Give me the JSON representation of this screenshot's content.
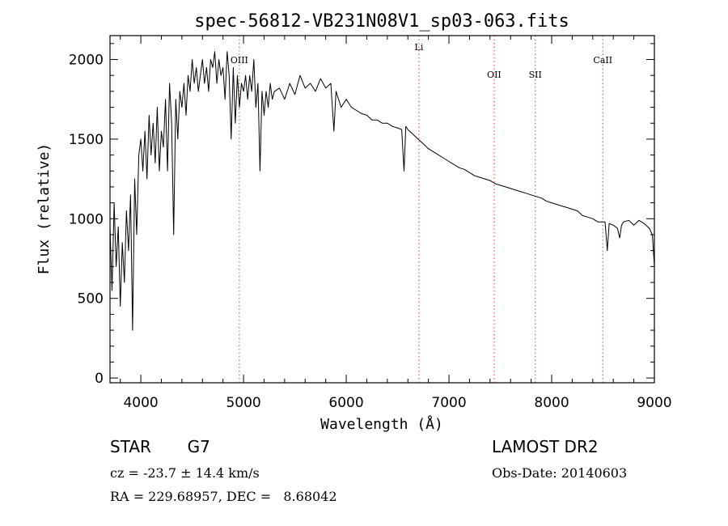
{
  "chart_data": {
    "type": "line",
    "title": "spec-56812-VB231N08V1_sp03-063.fits",
    "xlabel": "Wavelength (Å)",
    "ylabel": "Flux (relative)",
    "xlim": [
      3700,
      9000
    ],
    "ylim": [
      -30,
      2150
    ],
    "x_ticks": [
      4000,
      5000,
      6000,
      7000,
      8000,
      9000
    ],
    "y_ticks": [
      0,
      500,
      1000,
      1500,
      2000
    ],
    "grid": false,
    "line_color": "#000000",
    "marker_color": "#e06060",
    "lines": [
      {
        "label": "OIII",
        "wavelength": 4959
      },
      {
        "label": "Li",
        "wavelength": 6708
      },
      {
        "label": "OII",
        "wavelength": 7440
      },
      {
        "label": "SII",
        "wavelength": 7840
      },
      {
        "label": "CaII",
        "wavelength": 8498
      }
    ],
    "series": [
      {
        "x": [
          3700,
          3720,
          3740,
          3760,
          3780,
          3800,
          3820,
          3840,
          3860,
          3880,
          3900,
          3920,
          3940,
          3960,
          3980,
          4000,
          4020,
          4040,
          4060,
          4080,
          4100,
          4120,
          4140,
          4160,
          4180,
          4200,
          4220,
          4240,
          4260,
          4280,
          4300,
          4320,
          4340,
          4360,
          4380,
          4400,
          4420,
          4440,
          4460,
          4480,
          4500,
          4520,
          4540,
          4560,
          4580,
          4600,
          4620,
          4640,
          4660,
          4680,
          4700,
          4720,
          4740,
          4760,
          4780,
          4800,
          4820,
          4840,
          4860,
          4880,
          4900,
          4920,
          4940,
          4960,
          4980,
          5000,
          5020,
          5040,
          5060,
          5080,
          5100,
          5120,
          5140,
          5160,
          5180,
          5200,
          5220,
          5240,
          5260,
          5280,
          5300,
          5350,
          5400,
          5450,
          5500,
          5550,
          5600,
          5650,
          5700,
          5750,
          5800,
          5850,
          5880,
          5900,
          5950,
          6000,
          6050,
          6100,
          6150,
          6200,
          6250,
          6300,
          6350,
          6400,
          6450,
          6500,
          6540,
          6563,
          6580,
          6600,
          6650,
          6700,
          6750,
          6800,
          6850,
          6900,
          6950,
          7000,
          7050,
          7100,
          7150,
          7200,
          7250,
          7300,
          7350,
          7400,
          7450,
          7500,
          7550,
          7600,
          7650,
          7700,
          7750,
          7800,
          7850,
          7900,
          7950,
          8000,
          8050,
          8100,
          8150,
          8200,
          8250,
          8300,
          8350,
          8400,
          8450,
          8500,
          8520,
          8542,
          8560,
          8600,
          8640,
          8662,
          8680,
          8700,
          8750,
          8800,
          8850,
          8900,
          8950,
          8980,
          9000
        ],
        "y": [
          950,
          550,
          1100,
          700,
          950,
          450,
          850,
          600,
          1050,
          800,
          1150,
          300,
          1250,
          900,
          1400,
          1500,
          1300,
          1550,
          1250,
          1650,
          1400,
          1600,
          1350,
          1700,
          1300,
          1550,
          1450,
          1750,
          1300,
          1850,
          1600,
          900,
          1750,
          1500,
          1800,
          1700,
          1850,
          1650,
          1900,
          1800,
          2000,
          1850,
          1950,
          1800,
          1900,
          2000,
          1850,
          1950,
          1800,
          2000,
          1950,
          2050,
          1850,
          2000,
          1900,
          1950,
          1750,
          2050,
          1900,
          1500,
          1950,
          1600,
          1900,
          1700,
          1850,
          1800,
          1900,
          1750,
          1900,
          1800,
          2000,
          1700,
          1850,
          1300,
          1800,
          1650,
          1800,
          1700,
          1850,
          1750,
          1800,
          1820,
          1750,
          1850,
          1780,
          1900,
          1820,
          1850,
          1800,
          1880,
          1820,
          1850,
          1550,
          1800,
          1700,
          1750,
          1700,
          1680,
          1660,
          1650,
          1620,
          1620,
          1600,
          1600,
          1580,
          1570,
          1560,
          1300,
          1580,
          1560,
          1530,
          1500,
          1470,
          1440,
          1420,
          1400,
          1380,
          1360,
          1340,
          1320,
          1310,
          1290,
          1270,
          1260,
          1250,
          1240,
          1220,
          1210,
          1200,
          1190,
          1180,
          1170,
          1160,
          1150,
          1140,
          1130,
          1110,
          1100,
          1090,
          1080,
          1070,
          1060,
          1050,
          1020,
          1010,
          1000,
          980,
          980,
          980,
          800,
          970,
          960,
          940,
          880,
          960,
          980,
          990,
          960,
          990,
          970,
          940,
          900,
          700
        ]
      }
    ]
  },
  "footer": {
    "object_class": "STAR",
    "subclass": "G7",
    "survey": "LAMOST DR2",
    "redshift": "cz = -23.7 ± 14.4 km/s",
    "obs_date": "Obs-Date: 20140603",
    "coords": "RA = 229.68957, DEC =   8.68042"
  }
}
